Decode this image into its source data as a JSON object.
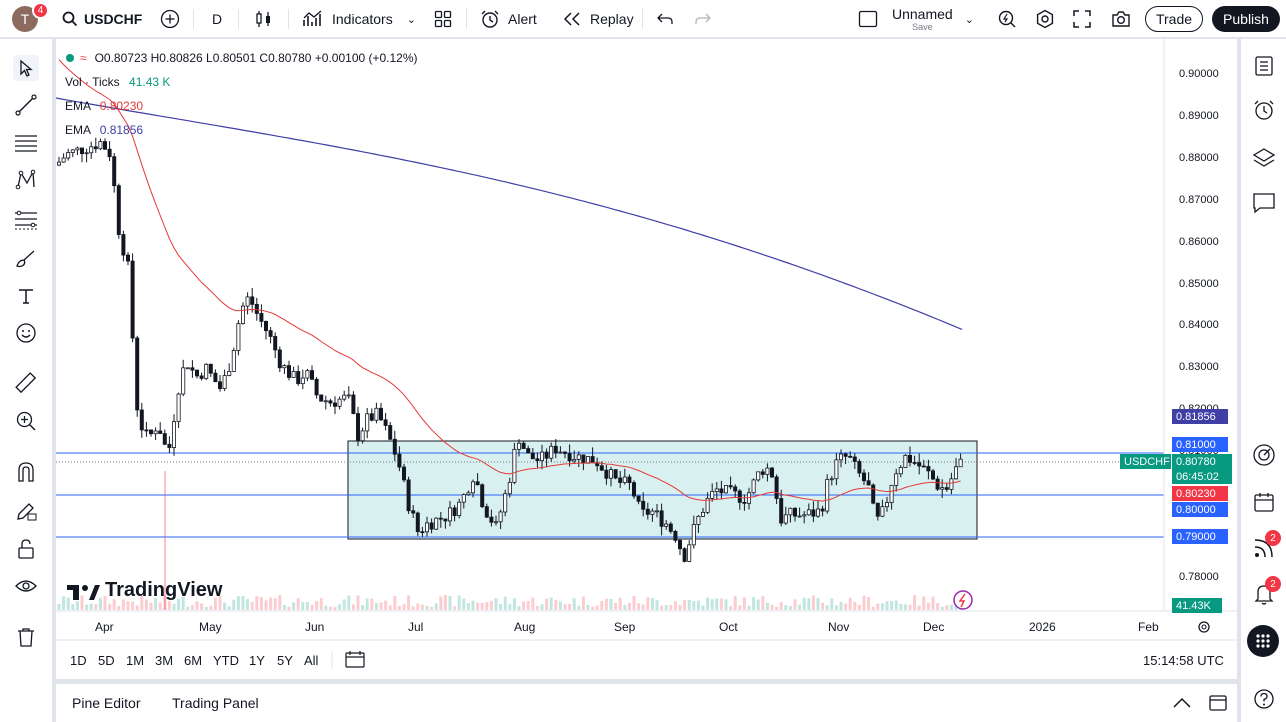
{
  "header": {
    "avatar_letter": "T",
    "notifications": "4",
    "symbol": "USDCHF",
    "interval": "D",
    "indicators_label": "Indicators",
    "alert_label": "Alert",
    "replay_label": "Replay",
    "layout_name": "Unnamed",
    "layout_save": "Save",
    "trade_label": "Trade",
    "publish_label": "Publish"
  },
  "legend": {
    "ohlc": "O0.80723 H0.80826 L0.80501 C0.80780 +0.00100 (+0.12%)",
    "vol_label": "Vol · Ticks",
    "vol_value": "41.43 K",
    "ema1_label": "EMA",
    "ema1_value": "0.80230",
    "ema2_label": "EMA",
    "ema2_value": "0.81856"
  },
  "price_axis": {
    "ticks": [
      "0.90000",
      "0.89000",
      "0.88000",
      "0.87000",
      "0.86000",
      "0.85000",
      "0.84000",
      "0.83000",
      "0.82000",
      "0.81000",
      "0.80000",
      "0.79000",
      "0.78000"
    ],
    "ema200_badge": "0.81856",
    "level_081": "0.81000",
    "symbol_tag": "USDCHF",
    "current_price": "0.80780",
    "countdown": "06:45:02",
    "ema50_badge": "0.80230",
    "level_080": "0.80000",
    "level_079": "0.79000",
    "volume_badge": "41.43K"
  },
  "time_axis": {
    "labels": [
      "Apr",
      "May",
      "Jun",
      "Jul",
      "Aug",
      "Sep",
      "Oct",
      "Nov",
      "Dec",
      "2026",
      "Feb"
    ]
  },
  "periods": [
    "1D",
    "5D",
    "1M",
    "3M",
    "6M",
    "YTD",
    "1Y",
    "5Y",
    "All"
  ],
  "clock": "15:14:58 UTC",
  "watermark": "TradingView",
  "bottom_tabs": {
    "pine": "Pine Editor",
    "trading_panel": "Trading Panel"
  },
  "right_badges": {
    "ideas": "2",
    "alerts": "2"
  },
  "colors": {
    "up": "#089981",
    "down": "#f23645",
    "ema50": "#e53935",
    "ema200": "#3f3fa6",
    "level_line": "#2962ff",
    "box_fill": "#d8f0ef"
  }
}
